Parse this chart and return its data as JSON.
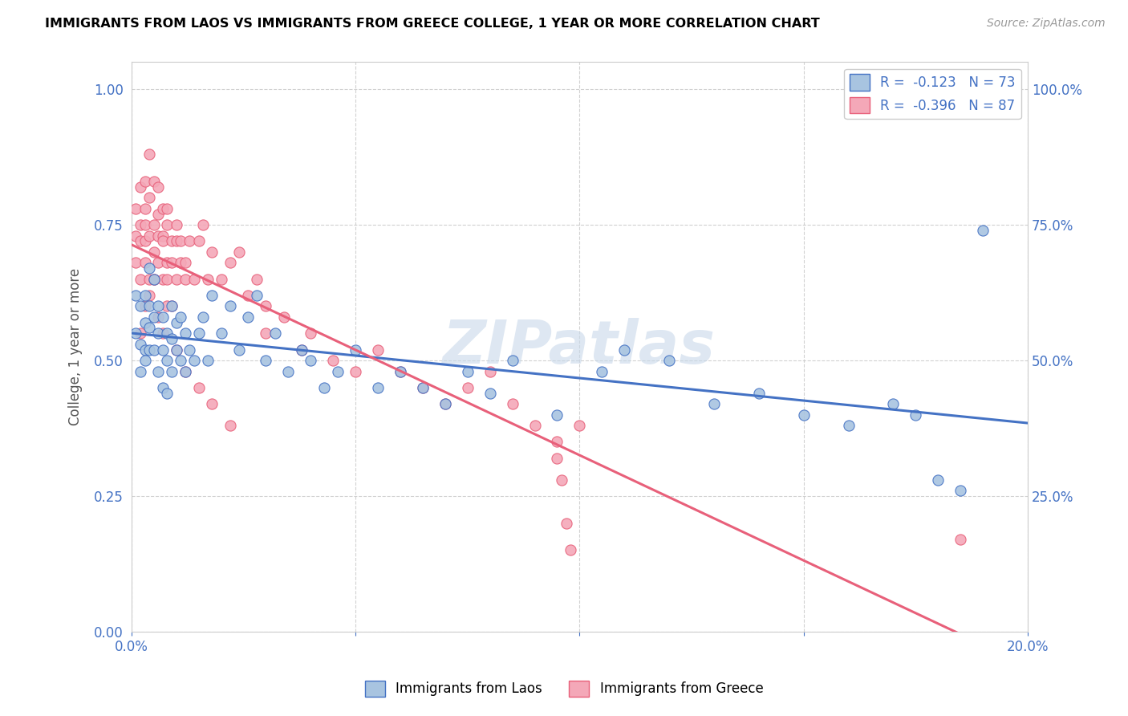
{
  "title": "IMMIGRANTS FROM LAOS VS IMMIGRANTS FROM GREECE COLLEGE, 1 YEAR OR MORE CORRELATION CHART",
  "source": "Source: ZipAtlas.com",
  "ylabel": "College, 1 year or more",
  "x_min": 0.0,
  "x_max": 0.2,
  "y_min": 0.0,
  "y_max": 1.05,
  "laos_color": "#a8c4e0",
  "greece_color": "#f4a8b8",
  "laos_line_color": "#4472c4",
  "greece_line_color": "#e8607a",
  "laos_R": -0.123,
  "laos_N": 73,
  "greece_R": -0.396,
  "greece_N": 87,
  "watermark": "ZIPatlas",
  "laos_scatter_x": [
    0.001,
    0.001,
    0.002,
    0.002,
    0.002,
    0.003,
    0.003,
    0.003,
    0.003,
    0.004,
    0.004,
    0.004,
    0.004,
    0.005,
    0.005,
    0.005,
    0.006,
    0.006,
    0.006,
    0.007,
    0.007,
    0.007,
    0.008,
    0.008,
    0.008,
    0.009,
    0.009,
    0.009,
    0.01,
    0.01,
    0.011,
    0.011,
    0.012,
    0.012,
    0.013,
    0.014,
    0.015,
    0.016,
    0.017,
    0.018,
    0.02,
    0.022,
    0.024,
    0.026,
    0.028,
    0.03,
    0.032,
    0.035,
    0.038,
    0.04,
    0.043,
    0.046,
    0.05,
    0.055,
    0.06,
    0.065,
    0.07,
    0.075,
    0.08,
    0.085,
    0.095,
    0.105,
    0.11,
    0.12,
    0.13,
    0.14,
    0.15,
    0.16,
    0.17,
    0.175,
    0.18,
    0.185,
    0.19
  ],
  "laos_scatter_y": [
    0.62,
    0.55,
    0.6,
    0.53,
    0.48,
    0.57,
    0.52,
    0.62,
    0.5,
    0.56,
    0.6,
    0.52,
    0.67,
    0.58,
    0.52,
    0.65,
    0.6,
    0.55,
    0.48,
    0.58,
    0.52,
    0.45,
    0.55,
    0.5,
    0.44,
    0.54,
    0.48,
    0.6,
    0.52,
    0.57,
    0.58,
    0.5,
    0.55,
    0.48,
    0.52,
    0.5,
    0.55,
    0.58,
    0.5,
    0.62,
    0.55,
    0.6,
    0.52,
    0.58,
    0.62,
    0.5,
    0.55,
    0.48,
    0.52,
    0.5,
    0.45,
    0.48,
    0.52,
    0.45,
    0.48,
    0.45,
    0.42,
    0.48,
    0.44,
    0.5,
    0.4,
    0.48,
    0.52,
    0.5,
    0.42,
    0.44,
    0.4,
    0.38,
    0.42,
    0.4,
    0.28,
    0.26,
    0.74
  ],
  "greece_scatter_x": [
    0.001,
    0.001,
    0.001,
    0.002,
    0.002,
    0.002,
    0.002,
    0.003,
    0.003,
    0.003,
    0.003,
    0.003,
    0.004,
    0.004,
    0.004,
    0.004,
    0.005,
    0.005,
    0.005,
    0.005,
    0.006,
    0.006,
    0.006,
    0.006,
    0.007,
    0.007,
    0.007,
    0.007,
    0.008,
    0.008,
    0.008,
    0.008,
    0.009,
    0.009,
    0.009,
    0.01,
    0.01,
    0.01,
    0.011,
    0.011,
    0.012,
    0.012,
    0.013,
    0.014,
    0.015,
    0.016,
    0.017,
    0.018,
    0.02,
    0.022,
    0.024,
    0.026,
    0.028,
    0.03,
    0.03,
    0.034,
    0.038,
    0.04,
    0.045,
    0.05,
    0.055,
    0.06,
    0.065,
    0.07,
    0.075,
    0.08,
    0.085,
    0.09,
    0.095,
    0.1,
    0.002,
    0.003,
    0.004,
    0.005,
    0.006,
    0.007,
    0.008,
    0.01,
    0.012,
    0.015,
    0.018,
    0.022,
    0.095,
    0.096,
    0.097,
    0.098,
    0.185
  ],
  "greece_scatter_y": [
    0.68,
    0.73,
    0.78,
    0.72,
    0.75,
    0.82,
    0.65,
    0.78,
    0.72,
    0.68,
    0.83,
    0.75,
    0.8,
    0.73,
    0.65,
    0.88,
    0.75,
    0.7,
    0.83,
    0.65,
    0.77,
    0.73,
    0.82,
    0.68,
    0.73,
    0.78,
    0.65,
    0.72,
    0.68,
    0.75,
    0.78,
    0.65,
    0.72,
    0.68,
    0.6,
    0.65,
    0.72,
    0.75,
    0.68,
    0.72,
    0.65,
    0.68,
    0.72,
    0.65,
    0.72,
    0.75,
    0.65,
    0.7,
    0.65,
    0.68,
    0.7,
    0.62,
    0.65,
    0.6,
    0.55,
    0.58,
    0.52,
    0.55,
    0.5,
    0.48,
    0.52,
    0.48,
    0.45,
    0.42,
    0.45,
    0.48,
    0.42,
    0.38,
    0.35,
    0.38,
    0.55,
    0.6,
    0.62,
    0.65,
    0.58,
    0.55,
    0.6,
    0.52,
    0.48,
    0.45,
    0.42,
    0.38,
    0.32,
    0.28,
    0.2,
    0.15,
    0.17
  ]
}
